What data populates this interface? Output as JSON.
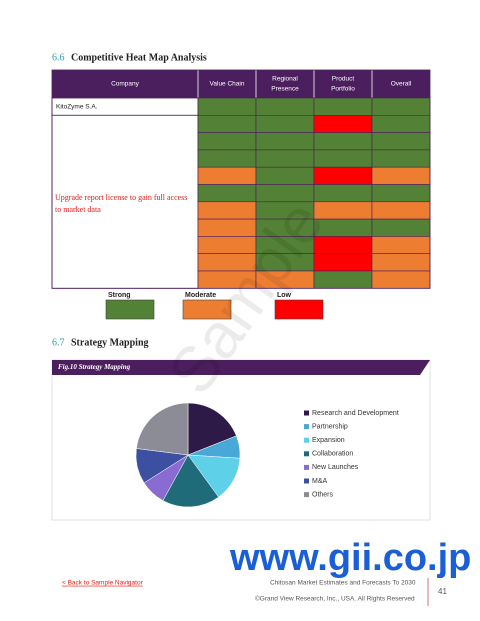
{
  "heatmap_section": {
    "number": "6.6",
    "title": "Competitive Heat Map Analysis"
  },
  "heatmap": {
    "columns": [
      [
        "Company"
      ],
      [
        "Value Chain"
      ],
      [
        "Regional",
        "Presence"
      ],
      [
        "Product",
        "Portfolio"
      ],
      [
        "Overall"
      ]
    ],
    "company": "KitoZyme S.A.",
    "locked_text": [
      "Upgrade report license to gain full access",
      "to market data"
    ],
    "levels": [
      {
        "label": "Strong",
        "color": "#538135"
      },
      {
        "label": "Moderate",
        "color": "#ed7d31"
      },
      {
        "label": "Low",
        "color": "#ff0000"
      }
    ],
    "rows": [
      [
        0,
        0,
        0,
        0
      ],
      [
        0,
        0,
        2,
        0
      ],
      [
        0,
        0,
        0,
        0
      ],
      [
        0,
        0,
        0,
        0
      ],
      [
        1,
        0,
        2,
        1
      ],
      [
        0,
        0,
        0,
        0
      ],
      [
        1,
        0,
        1,
        1
      ],
      [
        1,
        0,
        0,
        0
      ],
      [
        1,
        0,
        2,
        1
      ],
      [
        1,
        0,
        2,
        1
      ],
      [
        1,
        1,
        0,
        1
      ]
    ]
  },
  "strategy_section": {
    "number": "6.7",
    "title": "Strategy Mapping"
  },
  "chart_data": {
    "type": "pie",
    "title": "Fig.10 Strategy Mapping",
    "categories": [
      "Research and Development",
      "Partnership",
      "Expansion",
      "Collaboration",
      "New Launches",
      "M&A",
      "Others"
    ],
    "values": [
      19,
      7,
      14,
      18,
      8,
      11,
      23
    ],
    "colors": [
      "#2e1a47",
      "#4aa8d8",
      "#5ed0e8",
      "#1f6b7a",
      "#8a6bd1",
      "#3c4fa0",
      "#8c8c96"
    ]
  },
  "watermark": "Sample",
  "footer": {
    "site": "www.gii.co.jp",
    "back_link": "< Back to Sample Navigator",
    "report": "Chitosan Market Estimates and Forecasts To 2030",
    "copyright": "©Grand View Research, Inc., USA. All Rights Reserved",
    "page": "41"
  }
}
